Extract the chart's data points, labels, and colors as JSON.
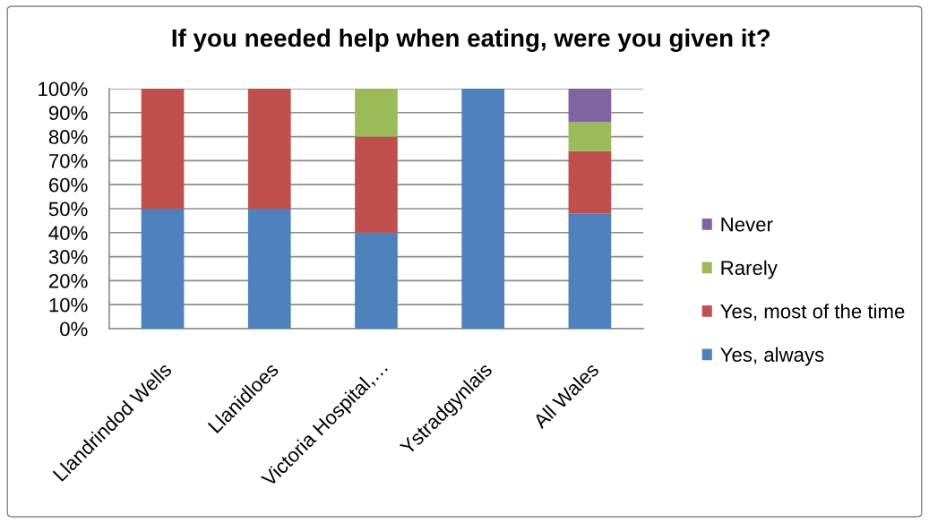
{
  "chart_data": {
    "type": "bar",
    "stacked": true,
    "title": "If you needed help when eating, were you given it?",
    "categories": [
      "Llandrindod Wells",
      "Llanidloes",
      "Victoria Hospital,…",
      "Ystradgynlais",
      "All Wales"
    ],
    "series": [
      {
        "name": "Yes, always",
        "color": "#4f81bd",
        "values": [
          50,
          50,
          40,
          100,
          48
        ]
      },
      {
        "name": "Yes, most of the time",
        "color": "#c0504d",
        "values": [
          50,
          50,
          40,
          null,
          26
        ]
      },
      {
        "name": "Rarely",
        "color": "#9bbb59",
        "values": [
          null,
          null,
          20,
          null,
          12
        ]
      },
      {
        "name": "Never",
        "color": "#8064a2",
        "values": [
          null,
          null,
          null,
          null,
          14
        ]
      }
    ],
    "ylim": [
      0,
      100
    ],
    "yticks": [
      {
        "value": 0,
        "label": "0%"
      },
      {
        "value": 10,
        "label": "10%"
      },
      {
        "value": 20,
        "label": "20%"
      },
      {
        "value": 30,
        "label": "30%"
      },
      {
        "value": 40,
        "label": "40%"
      },
      {
        "value": 50,
        "label": "50%"
      },
      {
        "value": 60,
        "label": "60%"
      },
      {
        "value": 70,
        "label": "70%"
      },
      {
        "value": 80,
        "label": "80%"
      },
      {
        "value": 90,
        "label": "90%"
      },
      {
        "value": 100,
        "label": "100%"
      }
    ],
    "grid": "y",
    "legend": "right"
  }
}
